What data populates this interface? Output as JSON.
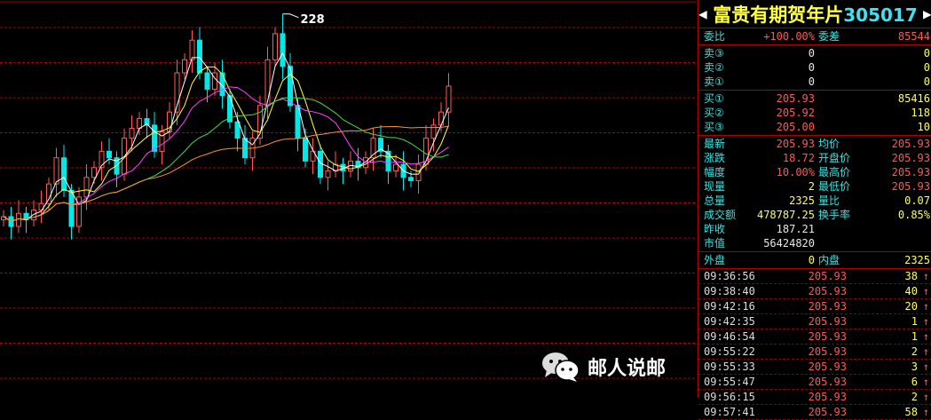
{
  "stock": {
    "name": "富贵有期贺年片",
    "code": "305017"
  },
  "chart": {
    "peak_label": "228",
    "up_color": "#ff5858",
    "down_color": "#00e8e8",
    "ma_colors": [
      "#ffffff",
      "#ffff40",
      "#ff40ff",
      "#40e040",
      "#ff9030"
    ],
    "closes": [
      166,
      163,
      167,
      165,
      168,
      170,
      176,
      184,
      174,
      163,
      172,
      178,
      181,
      186,
      184,
      179,
      190,
      193,
      196,
      194,
      186,
      192,
      198,
      210,
      214,
      220,
      210,
      205,
      210,
      203,
      195,
      190,
      184,
      190,
      200,
      214,
      222,
      212,
      200,
      190,
      183,
      186,
      178,
      180,
      182,
      180,
      183,
      181,
      184,
      190,
      186,
      180,
      182,
      178,
      177,
      182,
      190,
      194,
      198,
      205.93
    ],
    "peak_high": 228
  },
  "quote": {
    "weibi": {
      "label": "委比",
      "value": "+100.00%",
      "label2": "委差",
      "value2": "85544"
    },
    "sells": [
      {
        "label": "卖③",
        "price": "0",
        "vol": "0"
      },
      {
        "label": "卖②",
        "price": "0",
        "vol": "0"
      },
      {
        "label": "卖①",
        "price": "0",
        "vol": "0"
      }
    ],
    "buys": [
      {
        "label": "买①",
        "price": "205.93",
        "vol": "85416"
      },
      {
        "label": "买②",
        "price": "205.92",
        "vol": "118"
      },
      {
        "label": "买③",
        "price": "205.00",
        "vol": "10"
      }
    ],
    "stats": [
      {
        "l1": "最新",
        "v1": "205.93",
        "c1": "red",
        "l2": "均价",
        "v2": "205.93",
        "c2": "red"
      },
      {
        "l1": "涨跌",
        "v1": "18.72",
        "c1": "red",
        "l2": "开盘价",
        "v2": "205.93",
        "c2": "red"
      },
      {
        "l1": "幅度",
        "v1": "10.00%",
        "c1": "red",
        "l2": "最高价",
        "v2": "205.93",
        "c2": "red"
      },
      {
        "l1": "现量",
        "v1": "2",
        "c1": "yel",
        "l2": "最低价",
        "v2": "205.93",
        "c2": "red"
      },
      {
        "l1": "总量",
        "v1": "2325",
        "c1": "yel",
        "l2": "量比",
        "v2": "0.07",
        "c2": "yel"
      },
      {
        "l1": "成交额",
        "v1": "478787.25",
        "c1": "yel",
        "l2": "换手率",
        "v2": "0.85%",
        "c2": "yel"
      },
      {
        "l1": "昨收",
        "v1": "187.21",
        "c1": "wht",
        "l2": "",
        "v2": "",
        "c2": "wht"
      },
      {
        "l1": "市值",
        "v1": "56424820",
        "c1": "wht",
        "l2": "",
        "v2": "",
        "c2": "wht"
      }
    ],
    "outer": {
      "label": "外盘",
      "value": "0",
      "label2": "内盘",
      "value2": "2325"
    }
  },
  "ticks": [
    {
      "time": "09:36:56",
      "price": "205.93",
      "vol": "38"
    },
    {
      "time": "09:38:40",
      "price": "205.93",
      "vol": "40"
    },
    {
      "time": "09:42:16",
      "price": "205.93",
      "vol": "20"
    },
    {
      "time": "09:42:35",
      "price": "205.93",
      "vol": "1"
    },
    {
      "time": "09:46:54",
      "price": "205.93",
      "vol": "1"
    },
    {
      "time": "09:55:22",
      "price": "205.93",
      "vol": "2"
    },
    {
      "time": "09:55:33",
      "price": "205.93",
      "vol": "3"
    },
    {
      "time": "09:55:47",
      "price": "205.93",
      "vol": "6"
    },
    {
      "time": "09:56:15",
      "price": "205.93",
      "vol": "2"
    },
    {
      "time": "09:57:41",
      "price": "205.93",
      "vol": "58"
    }
  ],
  "tick_arrow": "↑",
  "watermark": "邮人说邮"
}
